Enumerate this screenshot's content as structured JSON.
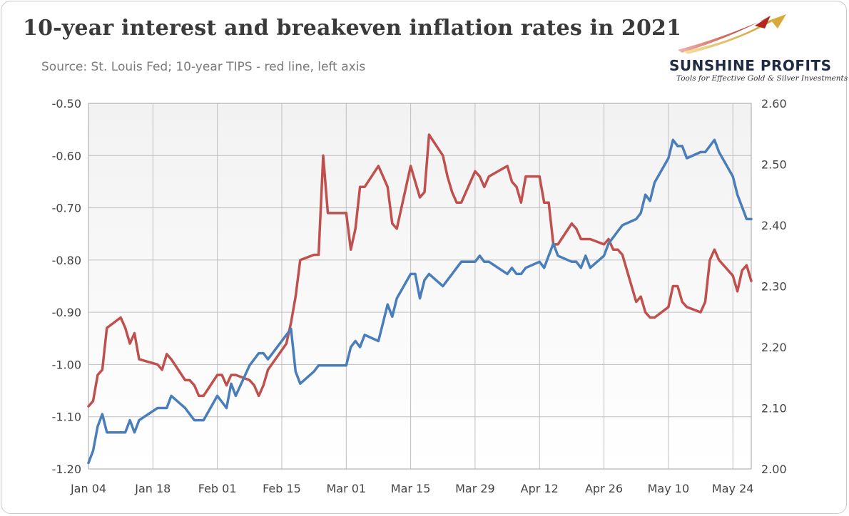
{
  "title": "10-year interest and breakeven inflation rates in 2021",
  "subtitle": "Source: St. Louis Fed; 10-year TIPS - red line, left axis",
  "logo": {
    "name": "SUNSHINE PROFITS",
    "tagline": "Tools for Effective Gold & Silver Investments"
  },
  "colors": {
    "tips": "#c0504d",
    "breakeven": "#4a7ebb",
    "grid": "#bfbfbf",
    "plot_bg_top": "#f2f2f2",
    "plot_bg_bottom": "#ffffff"
  },
  "chart_data": {
    "type": "line",
    "title": "10-year interest and breakeven inflation rates in 2021",
    "grid": true,
    "x_tick_labels": [
      "Jan 04",
      "Jan 18",
      "Feb 01",
      "Feb 15",
      "Mar 01",
      "Mar 15",
      "Mar 29",
      "Apr 12",
      "Apr 26",
      "May 10",
      "May 24"
    ],
    "y_left": {
      "min": -1.2,
      "max": -0.5,
      "ticks": [
        "-0.50",
        "-0.60",
        "-0.70",
        "-0.80",
        "-0.90",
        "-1.00",
        "-1.10",
        "-1.20"
      ]
    },
    "y_right": {
      "min": 2.0,
      "max": 2.6,
      "ticks": [
        "2.60",
        "2.50",
        "2.40",
        "2.30",
        "2.20",
        "2.10",
        "2.00"
      ]
    },
    "series": [
      {
        "key": "tips",
        "axis": "left",
        "x": [
          "2021-01-04",
          "2021-01-05",
          "2021-01-06",
          "2021-01-07",
          "2021-01-08",
          "2021-01-11",
          "2021-01-12",
          "2021-01-13",
          "2021-01-14",
          "2021-01-15",
          "2021-01-19",
          "2021-01-20",
          "2021-01-21",
          "2021-01-22",
          "2021-01-25",
          "2021-01-26",
          "2021-01-27",
          "2021-01-28",
          "2021-01-29",
          "2021-02-01",
          "2021-02-02",
          "2021-02-03",
          "2021-02-04",
          "2021-02-05",
          "2021-02-08",
          "2021-02-09",
          "2021-02-10",
          "2021-02-11",
          "2021-02-12",
          "2021-02-16",
          "2021-02-17",
          "2021-02-18",
          "2021-02-19",
          "2021-02-22",
          "2021-02-23",
          "2021-02-24",
          "2021-02-25",
          "2021-02-26",
          "2021-03-01",
          "2021-03-02",
          "2021-03-03",
          "2021-03-04",
          "2021-03-05",
          "2021-03-08",
          "2021-03-09",
          "2021-03-10",
          "2021-03-11",
          "2021-03-12",
          "2021-03-15",
          "2021-03-16",
          "2021-03-17",
          "2021-03-18",
          "2021-03-19",
          "2021-03-22",
          "2021-03-23",
          "2021-03-24",
          "2021-03-25",
          "2021-03-26",
          "2021-03-29",
          "2021-03-30",
          "2021-03-31",
          "2021-04-01",
          "2021-04-05",
          "2021-04-06",
          "2021-04-07",
          "2021-04-08",
          "2021-04-09",
          "2021-04-12",
          "2021-04-13",
          "2021-04-14",
          "2021-04-15",
          "2021-04-16",
          "2021-04-19",
          "2021-04-20",
          "2021-04-21",
          "2021-04-22",
          "2021-04-23",
          "2021-04-26",
          "2021-04-27",
          "2021-04-28",
          "2021-04-29",
          "2021-04-30",
          "2021-05-03",
          "2021-05-04",
          "2021-05-05",
          "2021-05-06",
          "2021-05-07",
          "2021-05-10",
          "2021-05-11",
          "2021-05-12",
          "2021-05-13",
          "2021-05-14",
          "2021-05-17",
          "2021-05-18",
          "2021-05-19",
          "2021-05-20",
          "2021-05-21",
          "2021-05-24",
          "2021-05-25",
          "2021-05-26",
          "2021-05-27",
          "2021-05-28"
        ],
        "y": [
          -1.08,
          -1.07,
          -1.02,
          -1.01,
          -0.93,
          -0.91,
          -0.93,
          -0.96,
          -0.94,
          -0.99,
          -1.0,
          -1.01,
          -0.98,
          -0.99,
          -1.03,
          -1.03,
          -1.04,
          -1.06,
          -1.06,
          -1.02,
          -1.02,
          -1.04,
          -1.02,
          -1.02,
          -1.03,
          -1.04,
          -1.06,
          -1.04,
          -1.01,
          -0.96,
          -0.92,
          -0.87,
          -0.8,
          -0.79,
          -0.79,
          -0.6,
          -0.71,
          -0.71,
          -0.71,
          -0.78,
          -0.74,
          -0.66,
          -0.66,
          -0.62,
          -0.64,
          -0.66,
          -0.73,
          -0.74,
          -0.62,
          -0.65,
          -0.68,
          -0.67,
          -0.56,
          -0.6,
          -0.64,
          -0.67,
          -0.69,
          -0.69,
          -0.63,
          -0.64,
          -0.66,
          -0.64,
          -0.62,
          -0.65,
          -0.66,
          -0.69,
          -0.64,
          -0.64,
          -0.69,
          -0.69,
          -0.77,
          -0.77,
          -0.73,
          -0.74,
          -0.76,
          -0.76,
          -0.76,
          -0.77,
          -0.76,
          -0.78,
          -0.78,
          -0.79,
          -0.88,
          -0.87,
          -0.9,
          -0.91,
          -0.91,
          -0.89,
          -0.85,
          -0.85,
          -0.88,
          -0.89,
          -0.9,
          -0.88,
          -0.8,
          -0.78,
          -0.8,
          -0.83,
          -0.86,
          -0.82,
          -0.81,
          -0.84
        ]
      },
      {
        "key": "breakeven",
        "axis": "right",
        "x": [
          "2021-01-04",
          "2021-01-05",
          "2021-01-06",
          "2021-01-07",
          "2021-01-08",
          "2021-01-11",
          "2021-01-12",
          "2021-01-13",
          "2021-01-14",
          "2021-01-15",
          "2021-01-19",
          "2021-01-20",
          "2021-01-21",
          "2021-01-22",
          "2021-01-25",
          "2021-01-26",
          "2021-01-27",
          "2021-01-28",
          "2021-01-29",
          "2021-02-01",
          "2021-02-02",
          "2021-02-03",
          "2021-02-04",
          "2021-02-05",
          "2021-02-08",
          "2021-02-09",
          "2021-02-10",
          "2021-02-11",
          "2021-02-12",
          "2021-02-16",
          "2021-02-17",
          "2021-02-18",
          "2021-02-19",
          "2021-02-22",
          "2021-02-23",
          "2021-02-24",
          "2021-02-25",
          "2021-02-26",
          "2021-03-01",
          "2021-03-02",
          "2021-03-03",
          "2021-03-04",
          "2021-03-05",
          "2021-03-08",
          "2021-03-09",
          "2021-03-10",
          "2021-03-11",
          "2021-03-12",
          "2021-03-15",
          "2021-03-16",
          "2021-03-17",
          "2021-03-18",
          "2021-03-19",
          "2021-03-22",
          "2021-03-23",
          "2021-03-24",
          "2021-03-25",
          "2021-03-26",
          "2021-03-29",
          "2021-03-30",
          "2021-03-31",
          "2021-04-01",
          "2021-04-05",
          "2021-04-06",
          "2021-04-07",
          "2021-04-08",
          "2021-04-09",
          "2021-04-12",
          "2021-04-13",
          "2021-04-14",
          "2021-04-15",
          "2021-04-16",
          "2021-04-19",
          "2021-04-20",
          "2021-04-21",
          "2021-04-22",
          "2021-04-23",
          "2021-04-26",
          "2021-04-27",
          "2021-04-28",
          "2021-04-29",
          "2021-04-30",
          "2021-05-03",
          "2021-05-04",
          "2021-05-05",
          "2021-05-06",
          "2021-05-07",
          "2021-05-10",
          "2021-05-11",
          "2021-05-12",
          "2021-05-13",
          "2021-05-14",
          "2021-05-17",
          "2021-05-18",
          "2021-05-19",
          "2021-05-20",
          "2021-05-21",
          "2021-05-24",
          "2021-05-25",
          "2021-05-26",
          "2021-05-27",
          "2021-05-28"
        ],
        "y": [
          2.01,
          2.03,
          2.07,
          2.09,
          2.06,
          2.06,
          2.06,
          2.08,
          2.06,
          2.08,
          2.1,
          2.1,
          2.1,
          2.12,
          2.1,
          2.09,
          2.08,
          2.08,
          2.08,
          2.12,
          2.11,
          2.1,
          2.14,
          2.12,
          2.17,
          2.18,
          2.19,
          2.19,
          2.18,
          2.22,
          2.23,
          2.16,
          2.14,
          2.16,
          2.17,
          2.17,
          2.17,
          2.17,
          2.17,
          2.2,
          2.21,
          2.2,
          2.22,
          2.21,
          2.24,
          2.27,
          2.25,
          2.28,
          2.32,
          2.32,
          2.28,
          2.31,
          2.32,
          2.3,
          2.31,
          2.32,
          2.33,
          2.34,
          2.34,
          2.35,
          2.34,
          2.34,
          2.32,
          2.33,
          2.32,
          2.32,
          2.33,
          2.34,
          2.33,
          2.35,
          2.37,
          2.35,
          2.34,
          2.34,
          2.33,
          2.35,
          2.33,
          2.35,
          2.37,
          2.38,
          2.39,
          2.4,
          2.41,
          2.42,
          2.45,
          2.44,
          2.47,
          2.51,
          2.54,
          2.53,
          2.53,
          2.51,
          2.52,
          2.52,
          2.53,
          2.54,
          2.52,
          2.48,
          2.45,
          2.43,
          2.41,
          2.41
        ]
      }
    ]
  }
}
